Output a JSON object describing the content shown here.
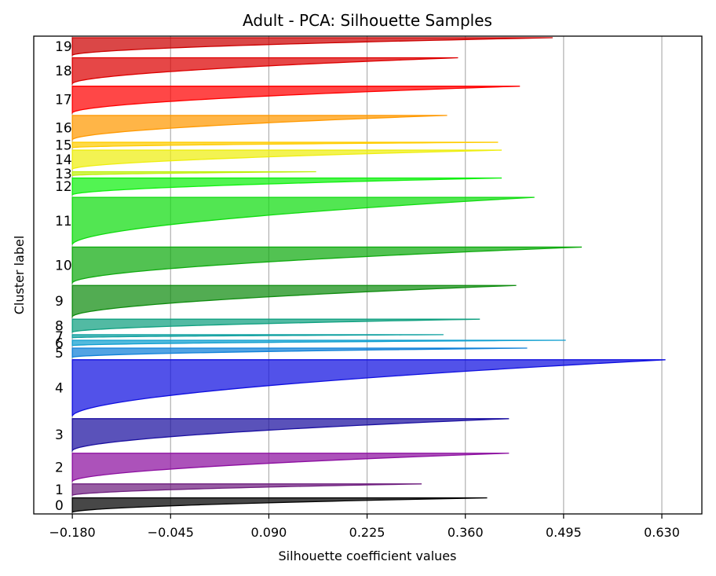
{
  "chart_data": {
    "type": "silhouette",
    "title": "Adult - PCA: Silhouette Samples",
    "xlabel": "Silhouette coefficient values",
    "ylabel": "Cluster label",
    "xlim": [
      -0.233,
      0.685
    ],
    "xticks": [
      -0.18,
      -0.045,
      0.09,
      0.225,
      0.36,
      0.495,
      0.63
    ],
    "xtick_labels": [
      "−0.180",
      "−0.045",
      "0.090",
      "0.225",
      "0.360",
      "0.495",
      "0.630"
    ],
    "grid": "vertical",
    "baseline": -0.18,
    "clusters": [
      {
        "label": "0",
        "size": 1.9,
        "max": 0.39,
        "color": "#000000"
      },
      {
        "label": "1",
        "size": 1.5,
        "max": 0.3,
        "color": "#6f1f7f"
      },
      {
        "label": "2",
        "size": 3.7,
        "max": 0.42,
        "color": "#8c0fa0"
      },
      {
        "label": "3",
        "size": 4.2,
        "max": 0.42,
        "color": "#1a0fa0"
      },
      {
        "label": "4",
        "size": 7.4,
        "max": 0.635,
        "color": "#0f0fe0"
      },
      {
        "label": "5",
        "size": 1.2,
        "max": 0.445,
        "color": "#0f80d8"
      },
      {
        "label": "6",
        "size": 0.7,
        "max": 0.498,
        "color": "#0f9fd0"
      },
      {
        "label": "7",
        "size": 0.4,
        "max": 0.33,
        "color": "#0fa0a0"
      },
      {
        "label": "8",
        "size": 1.7,
        "max": 0.38,
        "color": "#0fa080"
      },
      {
        "label": "9",
        "size": 4.1,
        "max": 0.43,
        "color": "#0f8c0f"
      },
      {
        "label": "10",
        "size": 4.7,
        "max": 0.52,
        "color": "#0faa0f"
      },
      {
        "label": "11",
        "size": 6.2,
        "max": 0.455,
        "color": "#0fdc0f"
      },
      {
        "label": "12",
        "size": 2.2,
        "max": 0.41,
        "color": "#0ff00f"
      },
      {
        "label": "13",
        "size": 0.5,
        "max": 0.155,
        "color": "#bff00f"
      },
      {
        "label": "14",
        "size": 2.5,
        "max": 0.41,
        "color": "#eeee0f"
      },
      {
        "label": "15",
        "size": 0.7,
        "max": 0.405,
        "color": "#ffcc00"
      },
      {
        "label": "16",
        "size": 3.2,
        "max": 0.335,
        "color": "#ff9900"
      },
      {
        "label": "17",
        "size": 3.5,
        "max": 0.435,
        "color": "#ff0000"
      },
      {
        "label": "18",
        "size": 3.4,
        "max": 0.35,
        "color": "#dd0000"
      },
      {
        "label": "19",
        "size": 2.3,
        "max": 0.48,
        "color": "#cc0000"
      }
    ]
  }
}
